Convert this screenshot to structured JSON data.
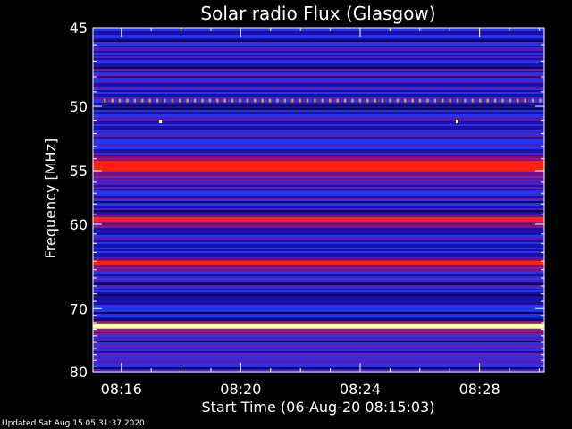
{
  "chart_data": {
    "type": "heatmap",
    "title": "Solar radio Flux (Glasgow)",
    "xlabel": "Start Time (06-Aug-20 08:15:03)",
    "ylabel": "Frequency [MHz]",
    "x_range": [
      "08:15:03",
      "08:30:10"
    ],
    "x_ticks": [
      "08:16",
      "08:20",
      "08:24",
      "08:28"
    ],
    "ylim": [
      45,
      80
    ],
    "y_ticks": [
      45,
      50,
      55,
      60,
      70,
      80
    ],
    "y_scale": "reciprocal",
    "colormap": [
      "#0a0040",
      "#1a10a8",
      "#2a3af0",
      "#5a20c0",
      "#8a1aa0",
      "#c01060",
      "#ff2010",
      "#ff8a00",
      "#ffff80"
    ],
    "bands": [
      {
        "freq_mhz": 49.6,
        "intensity": "dotted-orange"
      },
      {
        "freq_mhz": 51.1,
        "intensity": "spot"
      },
      {
        "freq_mhz": 54.6,
        "intensity": "strong-red"
      },
      {
        "freq_mhz": 59.5,
        "intensity": "red"
      },
      {
        "freq_mhz": 64.2,
        "intensity": "red"
      },
      {
        "freq_mhz": 72.5,
        "intensity": "yellow"
      }
    ]
  },
  "footer": {
    "updated": "Updated Sat Aug 15 05:31:37 2020"
  }
}
